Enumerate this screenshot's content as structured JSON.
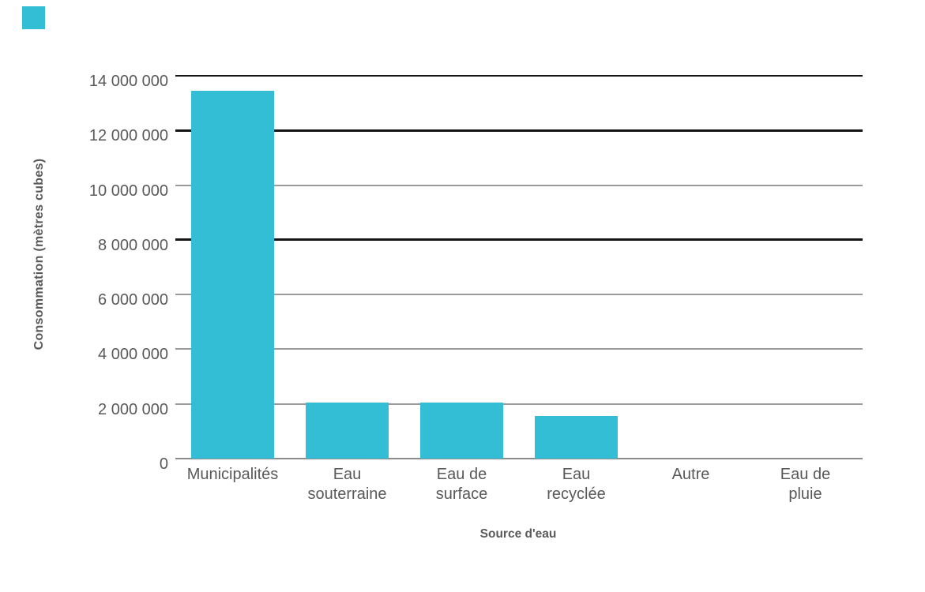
{
  "corner_swatch": {
    "color": "#33BED6"
  },
  "chart_data": {
    "type": "bar",
    "title": "",
    "xlabel": "Source d'eau",
    "ylabel": "Consommation (mètres cubes)",
    "categories": [
      "Municipalités",
      "Eau souterraine",
      "Eau de surface",
      "Eau recyclée",
      "Autre",
      "Eau de pluie"
    ],
    "category_label_lines": [
      [
        "Municipalités"
      ],
      [
        "Eau",
        "souterraine"
      ],
      [
        "Eau de",
        "surface"
      ],
      [
        "Eau",
        "recyclée"
      ],
      [
        "Autre"
      ],
      [
        "Eau de",
        "pluie"
      ]
    ],
    "values": [
      13450000,
      2050000,
      2050000,
      1550000,
      0,
      0
    ],
    "bar_color": "#33BED6",
    "ylim": [
      0,
      14000000
    ],
    "ytick_interval": 2000000,
    "grid": true,
    "legend_position": "none",
    "yticks": [
      {
        "value": 14000000,
        "label": "14 000 000",
        "line_style": "black-thin"
      },
      {
        "value": 12000000,
        "label": "12 000 000",
        "line_style": "black"
      },
      {
        "value": 10000000,
        "label": "10 000 000",
        "line_style": "gray"
      },
      {
        "value": 8000000,
        "label": "8 000 000",
        "line_style": "black"
      },
      {
        "value": 6000000,
        "label": "6 000 000",
        "line_style": "gray"
      },
      {
        "value": 4000000,
        "label": "4 000 000",
        "line_style": "gray"
      },
      {
        "value": 2000000,
        "label": "2 000 000",
        "line_style": "gray"
      },
      {
        "value": 0,
        "label": "0",
        "line_style": "gray-axis"
      }
    ]
  },
  "layout_text": {}
}
